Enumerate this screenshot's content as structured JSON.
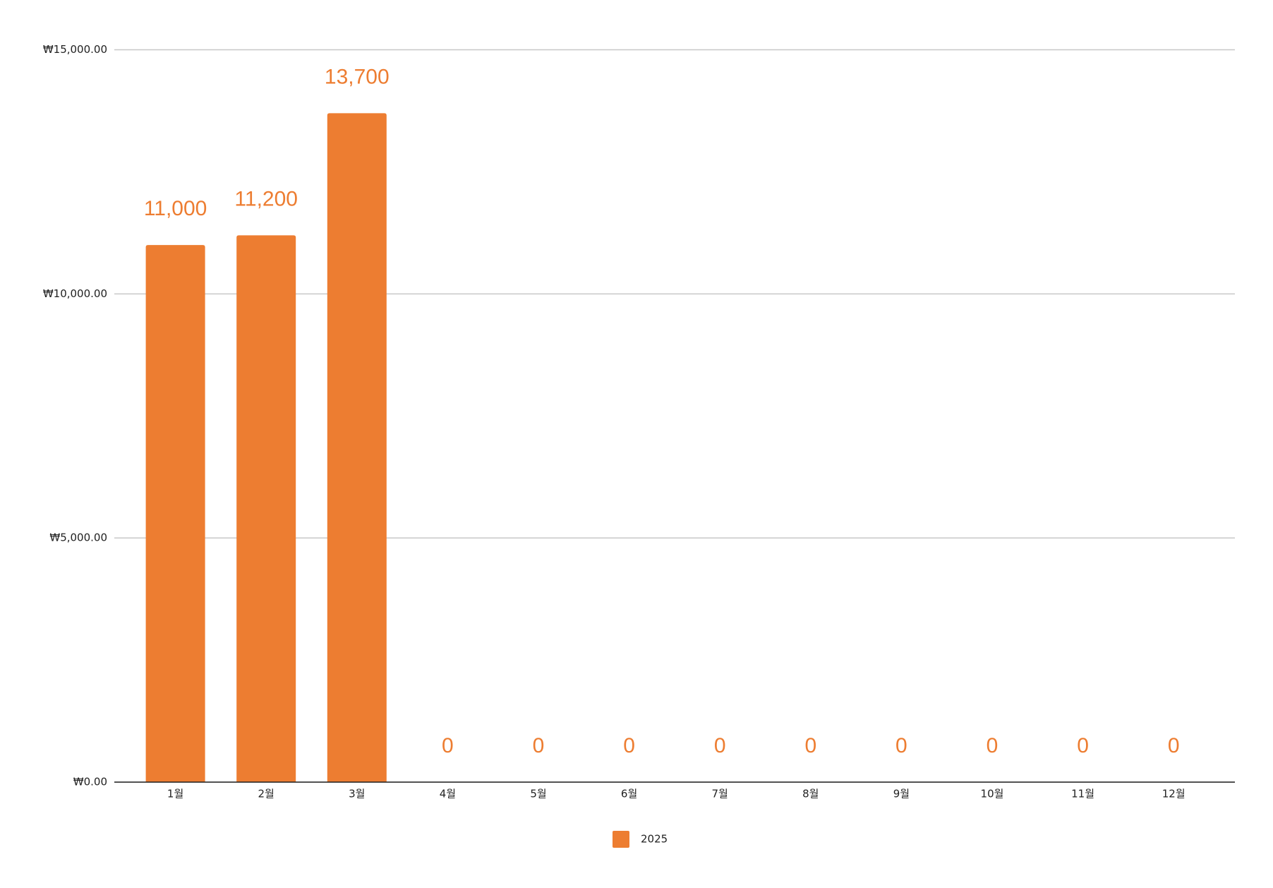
{
  "chart_data": {
    "type": "bar",
    "categories": [
      "1월",
      "2월",
      "3월",
      "4월",
      "5월",
      "6월",
      "7월",
      "8월",
      "9월",
      "10월",
      "11월",
      "12월"
    ],
    "series": [
      {
        "name": "2025",
        "color": "#ed7d31",
        "values": [
          11000,
          11200,
          13700,
          0,
          0,
          0,
          0,
          0,
          0,
          0,
          0,
          0
        ],
        "value_labels": [
          "11,000",
          "11,200",
          "13,700",
          "0",
          "0",
          "0",
          "0",
          "0",
          "0",
          "0",
          "0",
          "0"
        ]
      }
    ],
    "ylim": [
      0,
      15000
    ],
    "yticks": [
      {
        "value": 0,
        "label": "₩0.00"
      },
      {
        "value": 5000,
        "label": "₩5,000.00"
      },
      {
        "value": 10000,
        "label": "₩10,000.00"
      },
      {
        "value": 15000,
        "label": "₩15,000.00"
      }
    ],
    "grid": true,
    "legend": "bottom"
  }
}
